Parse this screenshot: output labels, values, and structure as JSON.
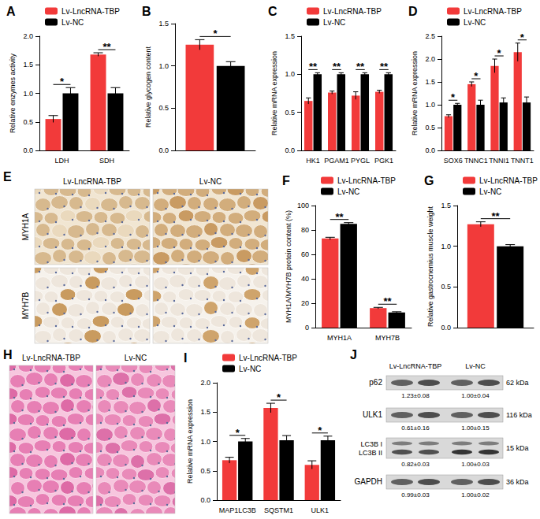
{
  "chart_data": [
    {
      "panel": "A",
      "type": "bar",
      "ylabel": "Relative enzymes activity",
      "categories": [
        "LDH",
        "SDH"
      ],
      "series": [
        {
          "name": "Lv-LncRNA-TBP",
          "color": "#f23a3a",
          "values": [
            0.55,
            1.68
          ],
          "errors": [
            0.06,
            0.03
          ]
        },
        {
          "name": "Lv-NC",
          "color": "#000000",
          "values": [
            1.0,
            1.0
          ],
          "errors": [
            0.1,
            0.1
          ]
        }
      ],
      "ylim": [
        0,
        2
      ],
      "yticks": [
        {
          "value": 0,
          "label": "0.0"
        },
        0.5,
        {
          "value": 1,
          "label": "1.0"
        },
        1.5,
        {
          "value": 2,
          "label": "2.0"
        }
      ],
      "grid": false,
      "legend": "upper left",
      "annotations": [
        {
          "index": 0,
          "text": "*"
        },
        {
          "index": 1,
          "text": "**"
        }
      ]
    },
    {
      "panel": "B",
      "type": "bar",
      "ylabel": "Relative glycogen content",
      "categories": [
        null
      ],
      "series": [
        {
          "name": "Lv-LncRNA-TBP",
          "color": "#f23a3a",
          "values": [
            1.25
          ],
          "errors": [
            0.06
          ]
        },
        {
          "name": "Lv-NC",
          "color": "#000000",
          "values": [
            1.0
          ],
          "errors": [
            0.05
          ]
        }
      ],
      "ylim": [
        0,
        1.5
      ],
      "yticks": [
        {
          "value": 0,
          "label": "0.0"
        },
        0.5,
        {
          "value": 1,
          "label": "1.0"
        },
        1.5
      ],
      "grid": false,
      "annotations": [
        {
          "index": 0,
          "text": "*"
        }
      ]
    },
    {
      "panel": "C",
      "type": "bar",
      "ylabel": "Relative mRNA expression",
      "categories": [
        "HK1",
        "PGAM1",
        "PYGL",
        "PGK1"
      ],
      "series": [
        {
          "name": "Lv-LncRNA-TBP",
          "color": "#f23a3a",
          "values": [
            0.65,
            0.76,
            0.72,
            0.77
          ],
          "errors": [
            0.04,
            0.02,
            0.05,
            0.02
          ]
        },
        {
          "name": "Lv-NC",
          "color": "#000000",
          "values": [
            1.0,
            1.0,
            1.0,
            1.0
          ],
          "errors": [
            0.02,
            0.02,
            0.02,
            0.02
          ]
        }
      ],
      "ylim": [
        0,
        1.5
      ],
      "yticks": [
        {
          "value": 0,
          "label": "0.0"
        },
        0.5,
        {
          "value": 1,
          "label": "1.0"
        },
        1.5
      ],
      "grid": false,
      "legend": "upper left",
      "annotations": [
        {
          "index": 0,
          "text": "**"
        },
        {
          "index": 1,
          "text": "**"
        },
        {
          "index": 2,
          "text": "**"
        },
        {
          "index": 3,
          "text": "**"
        }
      ]
    },
    {
      "panel": "D",
      "type": "bar",
      "ylabel": "Relative mRNA expression",
      "categories": [
        "SOX6",
        "TNNC1",
        "TNNI1",
        "TNNT1"
      ],
      "series": [
        {
          "name": "Lv-LncRNA-TBP",
          "color": "#f23a3a",
          "values": [
            0.75,
            1.45,
            1.85,
            2.15
          ],
          "errors": [
            0.03,
            0.05,
            0.15,
            0.2
          ]
        },
        {
          "name": "Lv-NC",
          "color": "#000000",
          "values": [
            1.0,
            1.0,
            1.05,
            1.05
          ],
          "errors": [
            0.03,
            0.1,
            0.1,
            0.12
          ]
        }
      ],
      "ylim": [
        0,
        2.5
      ],
      "yticks": [
        {
          "value": 0,
          "label": "0.0"
        },
        0.5,
        {
          "value": 1,
          "label": "1.0"
        },
        1.5,
        {
          "value": 2,
          "label": "2.0"
        },
        2.5
      ],
      "grid": false,
      "legend": "upper left",
      "annotations": [
        {
          "index": 0,
          "text": "*"
        },
        {
          "index": 1,
          "text": "*"
        },
        {
          "index": 2,
          "text": "*"
        },
        {
          "index": 3,
          "text": "*"
        }
      ]
    },
    {
      "panel": "F",
      "type": "bar",
      "ylabel": "MYH1A/MYH7B protein content (%)",
      "categories": [
        "MYH1A",
        "MYH7B"
      ],
      "series": [
        {
          "name": "Lv-LncRNA-TBP",
          "color": "#f23a3a",
          "values": [
            73,
            16
          ],
          "errors": [
            1,
            0.6
          ]
        },
        {
          "name": "Lv-NC",
          "color": "#000000",
          "values": [
            85,
            12.5
          ],
          "errors": [
            1,
            0.5
          ]
        }
      ],
      "ylim": [
        0,
        100
      ],
      "yticks": [
        0,
        20,
        40,
        60,
        80,
        100
      ],
      "grid": false,
      "legend": "upper left",
      "annotations": [
        {
          "index": 0,
          "text": "**"
        },
        {
          "index": 1,
          "text": "**"
        }
      ]
    },
    {
      "panel": "G",
      "type": "bar",
      "ylabel": "Relative gastrocnemius muscle weight",
      "categories": [
        null
      ],
      "series": [
        {
          "name": "Lv-LncRNA-TBP",
          "color": "#f23a3a",
          "values": [
            1.27
          ],
          "errors": [
            0.03
          ]
        },
        {
          "name": "Lv-NC",
          "color": "#000000",
          "values": [
            1.0
          ],
          "errors": [
            0.02
          ]
        }
      ],
      "ylim": [
        0,
        1.5
      ],
      "yticks": [
        {
          "value": 0,
          "label": "0.0"
        },
        0.5,
        {
          "value": 1,
          "label": "1.0"
        },
        1.5
      ],
      "grid": false,
      "legend": "upper left",
      "annotations": [
        {
          "index": 0,
          "text": "**"
        }
      ]
    },
    {
      "panel": "I",
      "type": "bar",
      "ylabel": "Relative mRNA expression",
      "categories": [
        "MAP1LC3B",
        "SQSTM1",
        "ULK1"
      ],
      "series": [
        {
          "name": "Lv-LncRNA-TBP",
          "color": "#f23a3a",
          "values": [
            0.68,
            1.57,
            0.6
          ],
          "errors": [
            0.05,
            0.08,
            0.07
          ]
        },
        {
          "name": "Lv-NC",
          "color": "#000000",
          "values": [
            1.0,
            1.02,
            1.02
          ],
          "errors": [
            0.05,
            0.08,
            0.07
          ]
        }
      ],
      "ylim": [
        0,
        2
      ],
      "yticks": [
        {
          "value": 0,
          "label": "0.0"
        },
        0.5,
        {
          "value": 1,
          "label": "1.0"
        },
        1.5,
        {
          "value": 2,
          "label": "2.0"
        }
      ],
      "grid": false,
      "legend": "upper left",
      "annotations": [
        {
          "index": 0,
          "text": "*"
        },
        {
          "index": 1,
          "text": "*"
        },
        {
          "index": 2,
          "text": "*"
        }
      ]
    }
  ],
  "images": [
    {
      "panel": "E",
      "columns": [
        "Lv-LncRNA-TBP",
        "Lv-NC"
      ],
      "rows": [
        "MYH1A",
        "MYH7B"
      ]
    },
    {
      "panel": "H",
      "columns": [
        "Lv-LncRNA-TBP",
        "Lv-NC"
      ]
    }
  ],
  "blot": {
    "panel": "J",
    "columns": [
      "Lv-LncRNA-TBP",
      "Lv-NC"
    ],
    "rows": [
      {
        "labels": [
          "p62"
        ],
        "size": "62 kDa",
        "values": [
          "1.23±0.08",
          "1.00±0.04"
        ]
      },
      {
        "labels": [
          "ULK1"
        ],
        "size": "116 kDa",
        "values": [
          "0.61±0.16",
          "1.00±0.15"
        ]
      },
      {
        "labels": [
          "LC3B I",
          "LC3B II"
        ],
        "size": "15 kDa",
        "values": [
          "0.82±0.03",
          "1.00±0.03"
        ]
      },
      {
        "labels": [
          "GAPDH"
        ],
        "size": "36 kDa",
        "values": [
          "0.99±0.03",
          "1.00±0.02"
        ]
      }
    ]
  }
}
